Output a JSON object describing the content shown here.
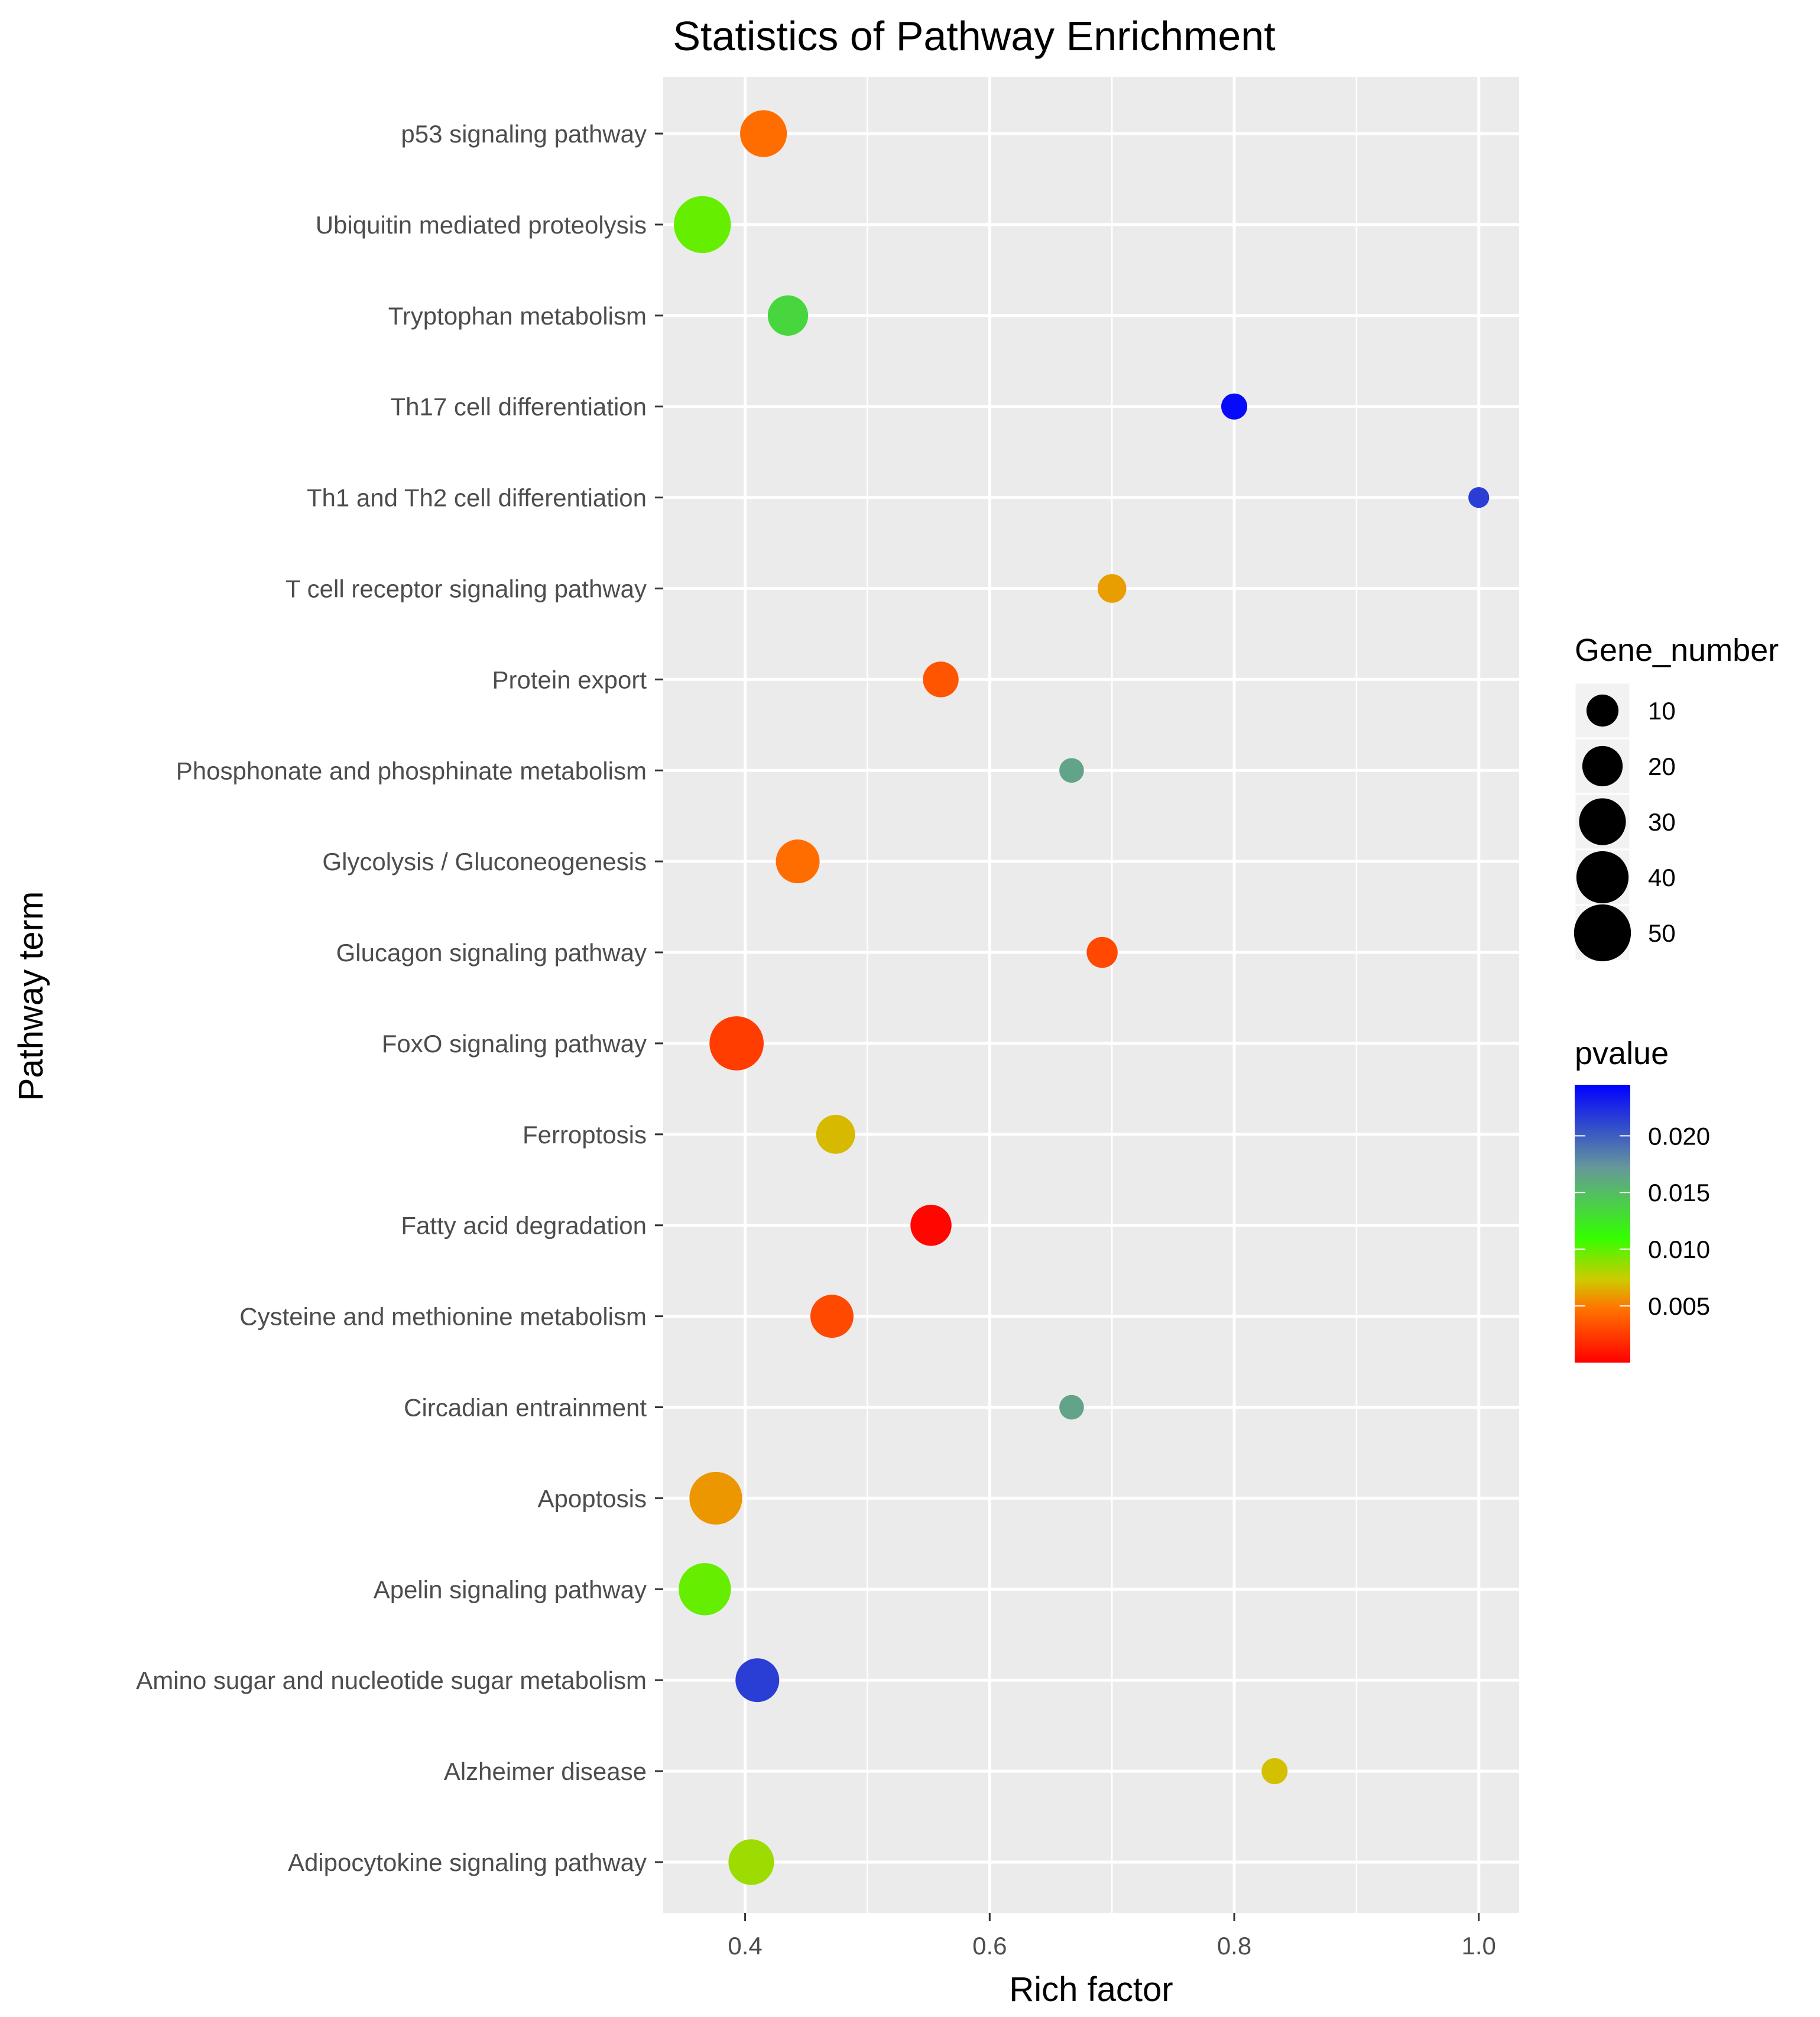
{
  "chart_data": {
    "type": "scatter",
    "title": "Statistics of Pathway Enrichment",
    "xlabel": "Rich factor",
    "ylabel": "Pathway term",
    "xlim": [
      0.333,
      1.033
    ],
    "x_ticks": [
      {
        "value": 0.4,
        "label": "0.4"
      },
      {
        "value": 0.6,
        "label": "0.6"
      },
      {
        "value": 0.8,
        "label": "0.8"
      },
      {
        "value": 1.0,
        "label": "1.0"
      }
    ],
    "grid": true,
    "points": [
      {
        "term": "p53 signaling pathway",
        "rich_factor": 0.415,
        "gene_number": 30,
        "pvalue": 0.0045
      },
      {
        "term": "Ubiquitin mediated proteolysis",
        "rich_factor": 0.365,
        "gene_number": 50,
        "pvalue": 0.0098
      },
      {
        "term": "Tryptophan metabolism",
        "rich_factor": 0.435,
        "gene_number": 20,
        "pvalue": 0.0135
      },
      {
        "term": "Th17 cell differentiation",
        "rich_factor": 0.8,
        "gene_number": 5,
        "pvalue": 0.024
      },
      {
        "term": "Th1 and Th2 cell differentiation",
        "rich_factor": 1.0,
        "gene_number": 2,
        "pvalue": 0.0215
      },
      {
        "term": "T cell receptor signaling pathway",
        "rich_factor": 0.7,
        "gene_number": 7,
        "pvalue": 0.006
      },
      {
        "term": "Protein export",
        "rich_factor": 0.56,
        "gene_number": 14,
        "pvalue": 0.0035
      },
      {
        "term": "Phosphonate and phosphinate metabolism",
        "rich_factor": 0.667,
        "gene_number": 4,
        "pvalue": 0.0165
      },
      {
        "term": "Glycolysis / Gluconeogenesis",
        "rich_factor": 0.443,
        "gene_number": 25,
        "pvalue": 0.0045
      },
      {
        "term": "Glucagon signaling pathway",
        "rich_factor": 0.692,
        "gene_number": 9,
        "pvalue": 0.003
      },
      {
        "term": "FoxO signaling pathway",
        "rich_factor": 0.393,
        "gene_number": 44,
        "pvalue": 0.0025
      },
      {
        "term": "Ferroptosis",
        "rich_factor": 0.474,
        "gene_number": 18,
        "pvalue": 0.0068
      },
      {
        "term": "Fatty acid degradation",
        "rich_factor": 0.552,
        "gene_number": 21,
        "pvalue": 0.0003
      },
      {
        "term": "Cysteine and methionine metabolism",
        "rich_factor": 0.471,
        "gene_number": 24,
        "pvalue": 0.003
      },
      {
        "term": "Circadian entrainment",
        "rich_factor": 0.667,
        "gene_number": 4,
        "pvalue": 0.0165
      },
      {
        "term": "Apoptosis",
        "rich_factor": 0.376,
        "gene_number": 41,
        "pvalue": 0.0058
      },
      {
        "term": "Apelin signaling pathway",
        "rich_factor": 0.367,
        "gene_number": 40,
        "pvalue": 0.0098
      },
      {
        "term": "Amino sugar and nucleotide sugar metabolism",
        "rich_factor": 0.41,
        "gene_number": 25,
        "pvalue": 0.0215
      },
      {
        "term": "Alzheimer disease",
        "rich_factor": 0.833,
        "gene_number": 5,
        "pvalue": 0.007
      },
      {
        "term": "Adipocytokine signaling pathway",
        "rich_factor": 0.405,
        "gene_number": 28,
        "pvalue": 0.0085
      }
    ],
    "size_legend": {
      "title": "Gene_number",
      "values": [
        {
          "value": 10,
          "label": "10"
        },
        {
          "value": 20,
          "label": "20"
        },
        {
          "value": 30,
          "label": "30"
        },
        {
          "value": 40,
          "label": "40"
        },
        {
          "value": 50,
          "label": "50"
        }
      ]
    },
    "color_legend": {
      "title": "pvalue",
      "range": [
        0,
        0.0245
      ],
      "low_color": "#ff0000",
      "mid_color": "#00ff00",
      "high_color": "#0000ff",
      "ticks": [
        {
          "value": 0.02,
          "label": "0.020"
        },
        {
          "value": 0.015,
          "label": "0.015"
        },
        {
          "value": 0.01,
          "label": "0.010"
        },
        {
          "value": 0.005,
          "label": "0.005"
        }
      ]
    },
    "colors": {
      "panel_bg": "#ebebeb",
      "grid_major": "#ffffff",
      "text": "#4d4d4d"
    }
  }
}
